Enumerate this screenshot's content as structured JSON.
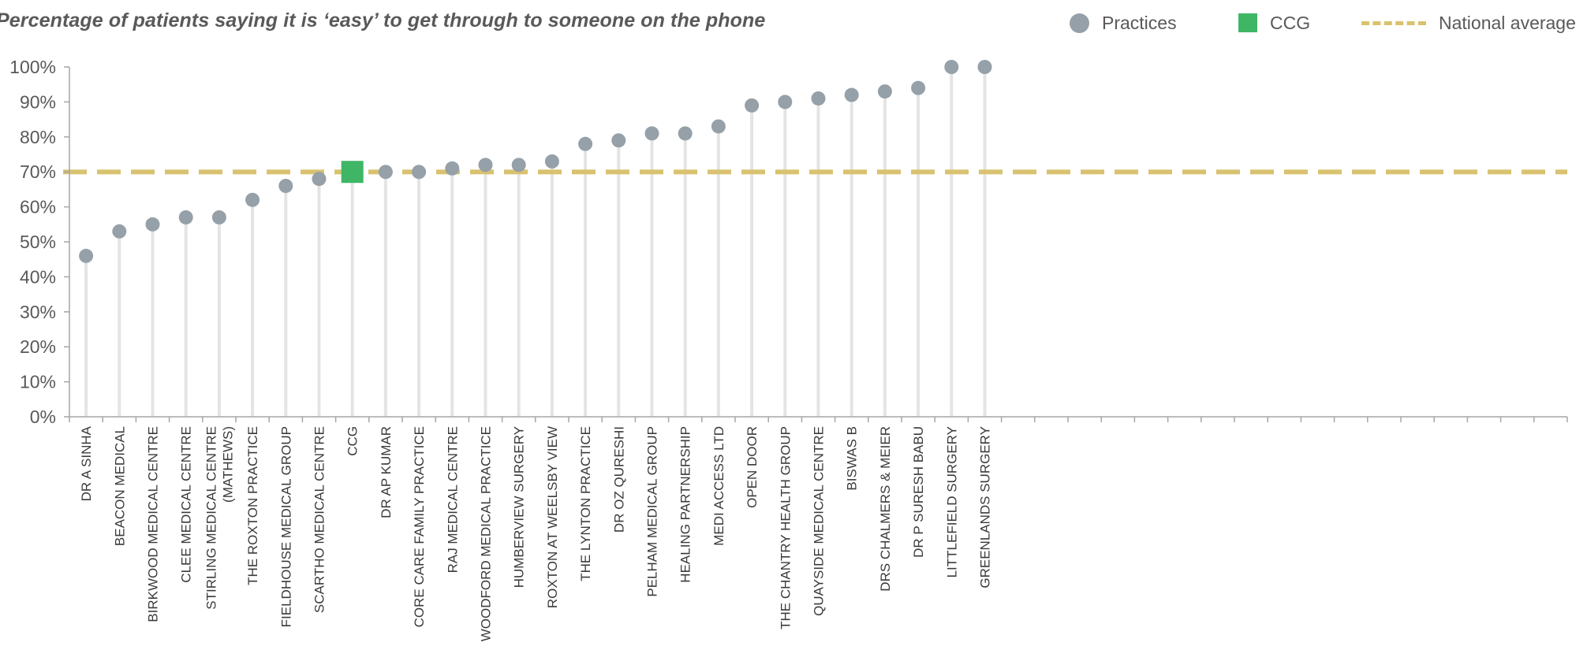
{
  "chart_data": {
    "type": "scatter",
    "title": "Percentage of patients saying it is ‘easy’ to get through to someone on the phone",
    "xlabel": "",
    "ylabel": "",
    "ylim": [
      0,
      100
    ],
    "y_ticks": [
      "0%",
      "10%",
      "20%",
      "30%",
      "40%",
      "50%",
      "60%",
      "70%",
      "80%",
      "90%",
      "100%"
    ],
    "total_slots": 45,
    "national_average": 70,
    "legend": {
      "position": "top-right",
      "items": [
        {
          "label": "Practices",
          "marker": "circle",
          "color": "#95a0a8"
        },
        {
          "label": "CCG",
          "marker": "square",
          "color": "#3fb666"
        },
        {
          "label": "National average",
          "marker": "dashed-line",
          "color": "#d9c270"
        }
      ]
    },
    "categories": [
      [
        "DR A SINHA"
      ],
      [
        "BEACON MEDICAL"
      ],
      [
        "BIRKWOOD MEDICAL CENTRE"
      ],
      [
        "CLEE MEDICAL CENTRE"
      ],
      [
        "STIRLING MEDICAL CENTRE",
        "(MATHEWS)"
      ],
      [
        "THE ROXTON PRACTICE"
      ],
      [
        "FIELDHOUSE MEDICAL GROUP"
      ],
      [
        "SCARTHO MEDICAL CENTRE"
      ],
      [
        "CCG"
      ],
      [
        "DR AP KUMAR"
      ],
      [
        "CORE CARE FAMILY PRACTICE"
      ],
      [
        "RAJ MEDICAL CENTRE"
      ],
      [
        "WOODFORD MEDICAL PRACTICE"
      ],
      [
        "HUMBERVIEW SURGERY"
      ],
      [
        "ROXTON AT WEELSBY VIEW"
      ],
      [
        "THE LYNTON PRACTICE"
      ],
      [
        "DR OZ QURESHI"
      ],
      [
        "PELHAM MEDICAL GROUP"
      ],
      [
        "HEALING PARTNERSHIP"
      ],
      [
        "MEDI ACCESS LTD"
      ],
      [
        "OPEN DOOR"
      ],
      [
        "THE CHANTRY HEALTH GROUP"
      ],
      [
        "QUAYSIDE MEDICAL CENTRE"
      ],
      [
        "BISWAS B"
      ],
      [
        "DRS CHALMERS & MEIER"
      ],
      [
        "DR P SURESH BABU"
      ],
      [
        "LITTLEFIELD SURGERY"
      ],
      [
        "GREENLANDS SURGERY"
      ]
    ],
    "values": [
      46,
      53,
      55,
      57,
      57,
      62,
      66,
      68,
      70,
      70,
      70,
      71,
      72,
      72,
      73,
      78,
      79,
      81,
      81,
      83,
      89,
      90,
      91,
      92,
      93,
      94,
      100,
      100
    ],
    "highlight_index": 8,
    "colors": {
      "practice": "#95a0a8",
      "ccg": "#3fb666",
      "national": "#d9c270",
      "stem": "#e4e4e4",
      "axis": "#a6a6a6",
      "text": "#595959",
      "label": "#3a3a3a"
    }
  }
}
